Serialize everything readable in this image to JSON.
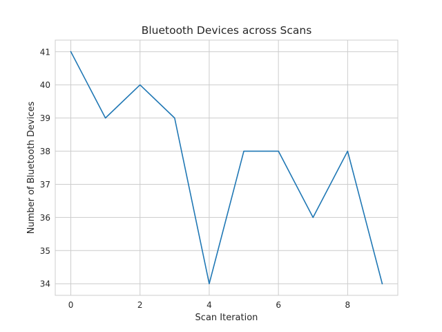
{
  "chart_data": {
    "type": "line",
    "title": "Bluetooth Devices across Scans",
    "xlabel": "Scan Iteration",
    "ylabel": "Number of Bluetooth Devices",
    "x": [
      0,
      1,
      2,
      3,
      4,
      5,
      6,
      7,
      8,
      9
    ],
    "series": [
      {
        "values": [
          41,
          39,
          40,
          39,
          34,
          38,
          38,
          36,
          38,
          34
        ],
        "color": "#1f77b4"
      }
    ],
    "xticks": [
      0,
      2,
      4,
      6,
      8
    ],
    "yticks": [
      34,
      35,
      36,
      37,
      38,
      39,
      40,
      41
    ],
    "xlim": [
      -0.45,
      9.45
    ],
    "ylim": [
      33.65,
      41.35
    ],
    "grid": true,
    "grid_color": "#cccccc",
    "spine_color": "#cccccc",
    "text_color": "#262626"
  }
}
